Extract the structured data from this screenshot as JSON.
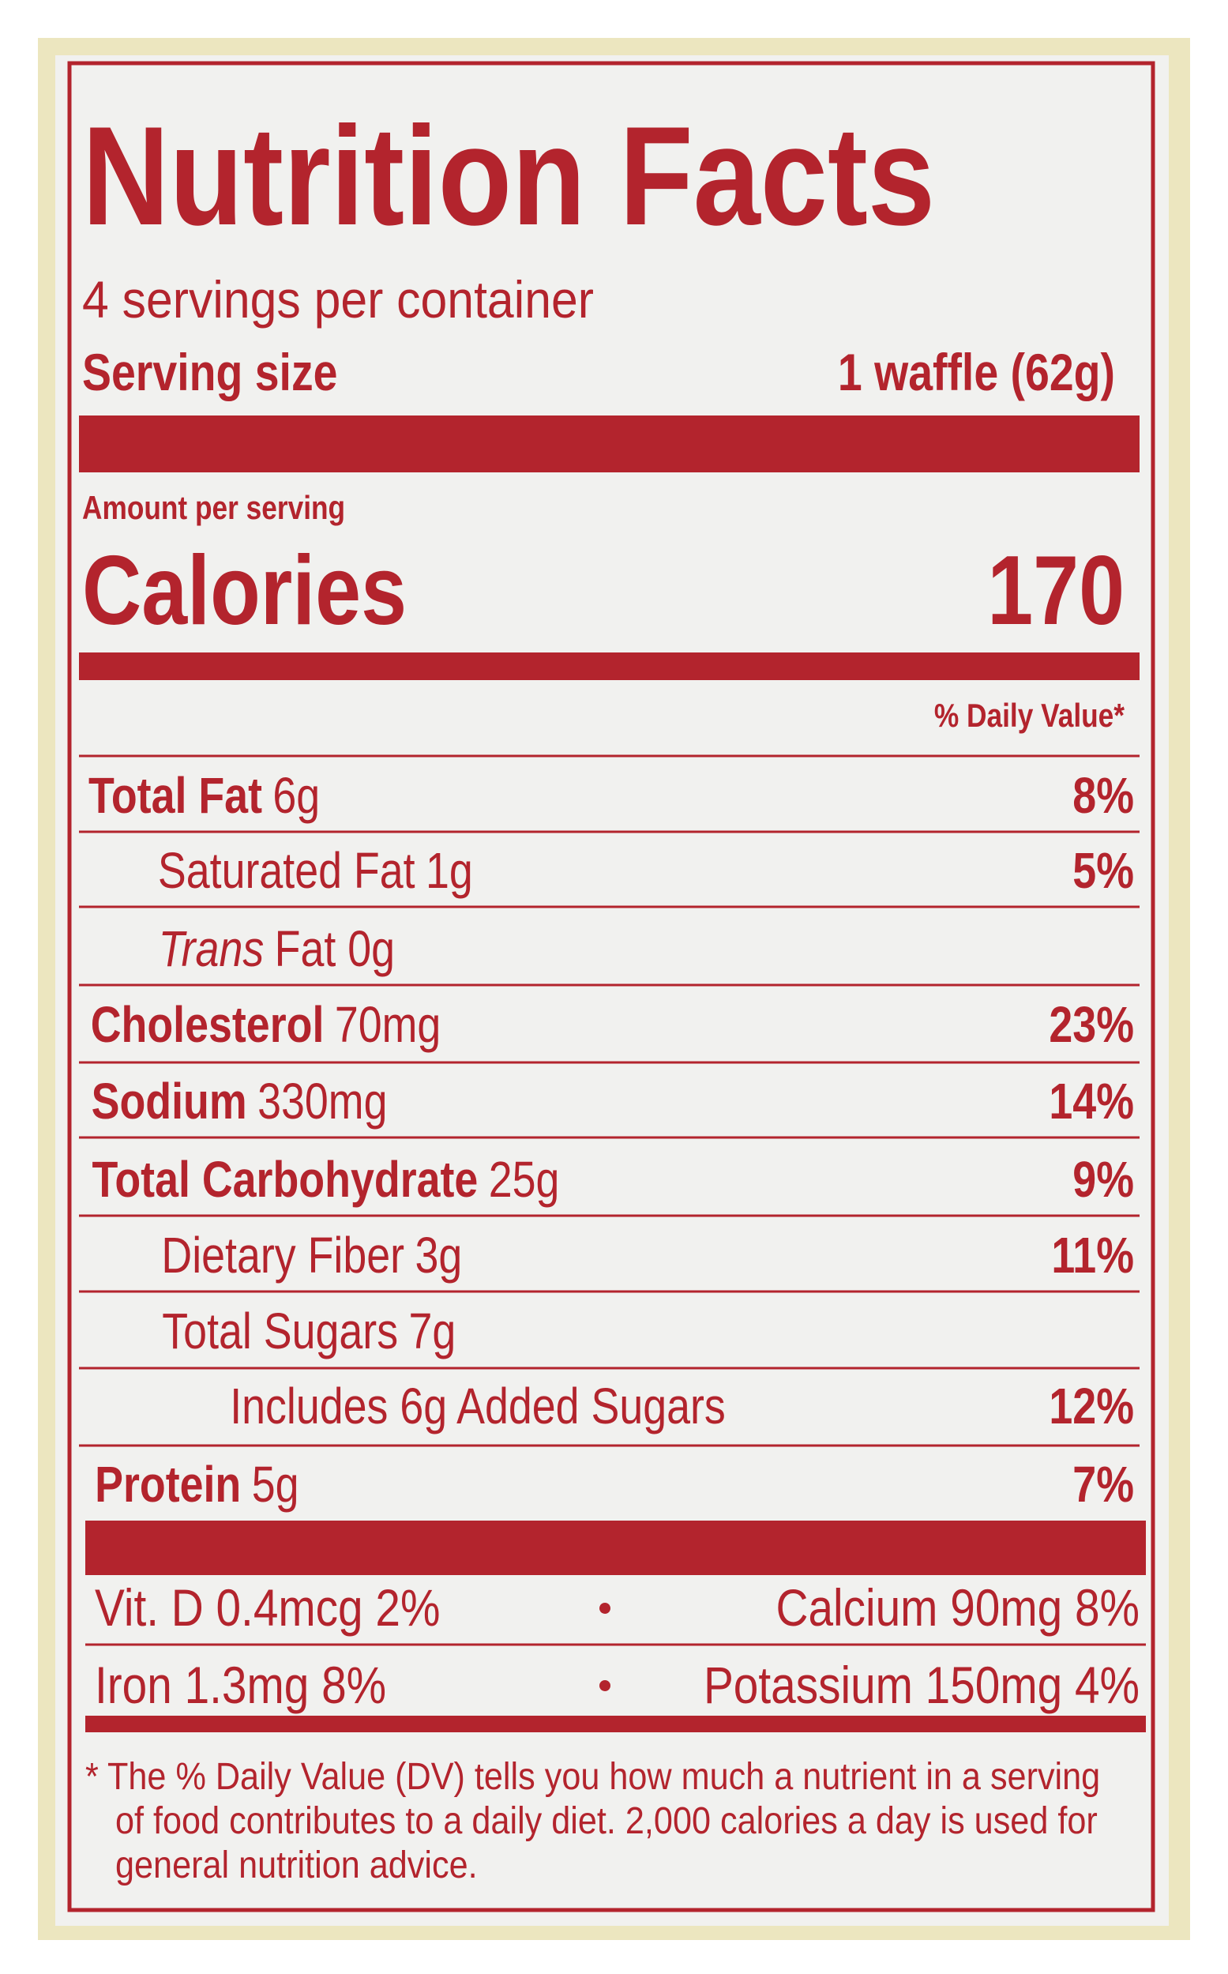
{
  "header": {
    "title": "Nutrition Facts",
    "servings": "4 servings per container",
    "serving_size_label": "Serving size",
    "serving_size_value": "1 waffle (62g)"
  },
  "calories": {
    "amount_label": "Amount per serving",
    "label": "Calories",
    "value": "170"
  },
  "daily_value_header": "% Daily Value*",
  "nutrients": [
    {
      "name": "Total Fat",
      "amount": "6g",
      "dv": "8%"
    },
    {
      "name": "Saturated Fat",
      "amount": "1g",
      "dv": "5%"
    },
    {
      "name": "Trans",
      "amount": "Fat 0g"
    },
    {
      "name": "Cholesterol",
      "amount": "70mg",
      "dv": "23%"
    },
    {
      "name": "Sodium",
      "amount": "330mg",
      "dv": "14%"
    },
    {
      "name": "Total Carbohydrate",
      "amount": "25g",
      "dv": "9%"
    },
    {
      "name": "Dietary Fiber",
      "amount": "3g",
      "dv": "11%"
    },
    {
      "name": "Total Sugars",
      "amount": "7g"
    },
    {
      "name": "Includes 6g Added Sugars",
      "dv": "12%"
    },
    {
      "name": "Protein",
      "amount": "5g",
      "dv": "7%"
    }
  ],
  "vitamins": [
    {
      "left": "Vit. D 0.4mcg 2%",
      "right": "Calcium 90mg 8%"
    },
    {
      "left": "Iron 1.3mg 8%",
      "right": "Potassium 150mg 4%"
    }
  ],
  "footnote_lines": [
    "* The % Daily Value (DV) tells you how much a nutrient in a serving",
    "of food contributes to a daily diet. 2,000 calories a day is used for",
    "general nutrition advice."
  ]
}
